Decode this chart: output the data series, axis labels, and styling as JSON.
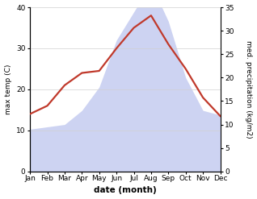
{
  "months": [
    "Jan",
    "Feb",
    "Mar",
    "Apr",
    "May",
    "Jun",
    "Jul",
    "Aug",
    "Sep",
    "Oct",
    "Nov",
    "Dec"
  ],
  "temp": [
    14,
    16,
    21,
    24,
    24.5,
    30,
    35,
    38,
    31,
    25,
    18,
    13.5
  ],
  "precip": [
    9,
    9.5,
    10,
    13,
    18,
    28,
    34,
    40,
    32,
    20,
    13,
    12
  ],
  "temp_color": "#c0392b",
  "precip_fill_color": "#c5ccf0",
  "precip_fill_alpha": 0.85,
  "ylabel_left": "max temp (C)",
  "ylabel_right": "med. precipitation (kg/m2)",
  "xlabel": "date (month)",
  "ylim_left": [
    0,
    40
  ],
  "ylim_right": [
    0,
    35
  ],
  "yticks_left": [
    0,
    10,
    20,
    30,
    40
  ],
  "yticks_right": [
    0,
    5,
    10,
    15,
    20,
    25,
    30,
    35
  ],
  "background_color": "#ffffff",
  "temp_linewidth": 1.6,
  "grid_color": "#d0d0d0",
  "xlabel_fontsize": 7.5,
  "ylabel_fontsize": 6.5,
  "tick_fontsize": 6.5
}
